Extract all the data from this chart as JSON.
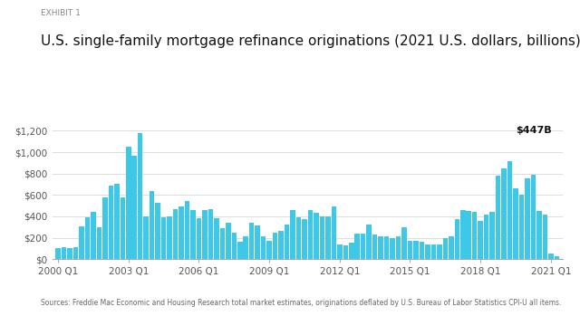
{
  "title": "U.S. single-family mortgage refinance originations (2021 U.S. dollars, billions)",
  "exhibit_label": "EXHIBIT 1",
  "annotation": "$447B",
  "source_text": "Sources: Freddie Mac Economic and Housing Research total market estimates, originations deflated by U.S. Bureau of Labor Statistics CPI-U all items.",
  "bar_color": "#3EC8E8",
  "background_color": "#ffffff",
  "ylim": [
    0,
    1300
  ],
  "yticks": [
    0,
    200,
    400,
    600,
    800,
    1000,
    1200
  ],
  "ytick_labels": [
    "$0",
    "$200",
    "$400",
    "$600",
    "$800",
    "$1,000",
    "$1,200"
  ],
  "xtick_positions": [
    0,
    12,
    24,
    36,
    48,
    60,
    72,
    84,
    88
  ],
  "xtick_labels": [
    "2000 Q1",
    "2003 Q1",
    "2006 Q1",
    "2009 Q1",
    "2012 Q1",
    "2015 Q1",
    "2018 Q1",
    "2021 Q1",
    ""
  ],
  "values": [
    100,
    110,
    105,
    115,
    310,
    390,
    445,
    300,
    575,
    690,
    700,
    580,
    1050,
    970,
    1180,
    400,
    640,
    530,
    395,
    400,
    470,
    490,
    540,
    460,
    380,
    460,
    470,
    380,
    290,
    340,
    245,
    160,
    210,
    340,
    315,
    210,
    170,
    250,
    265,
    320,
    460,
    390,
    370,
    460,
    430,
    400,
    400,
    490,
    140,
    130,
    155,
    240,
    235,
    325,
    230,
    215,
    215,
    200,
    210,
    300,
    175,
    175,
    165,
    135,
    135,
    135,
    200,
    210,
    370,
    460,
    450,
    440,
    360,
    420,
    445,
    780,
    850,
    920,
    660,
    600,
    755,
    790,
    447,
    420,
    55,
    30
  ]
}
